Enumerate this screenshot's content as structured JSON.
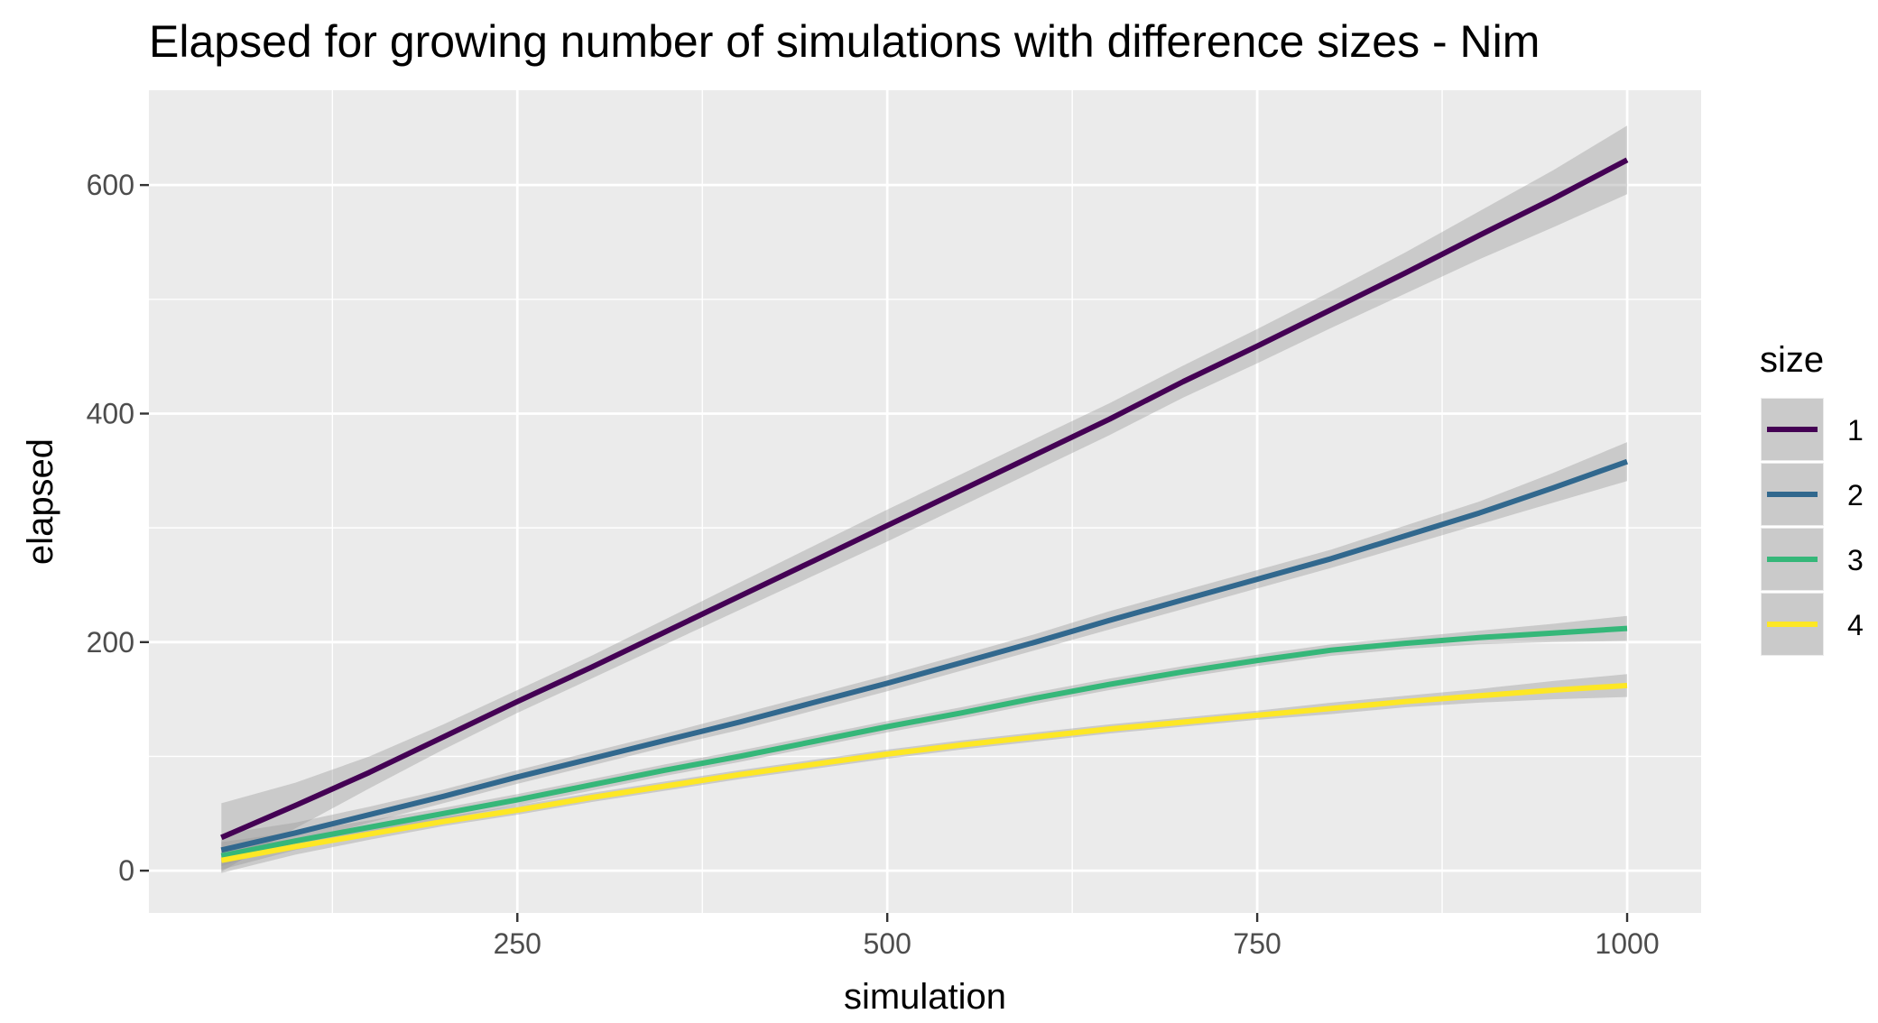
{
  "chart_data": {
    "type": "line",
    "title": "Elapsed for growing number of simulations with difference sizes - Nim",
    "xlabel": "simulation",
    "ylabel": "elapsed",
    "xlim": [
      1,
      1050
    ],
    "ylim": [
      -37,
      683
    ],
    "x_ticks": [
      250,
      500,
      750,
      1000
    ],
    "x_tick_labels": [
      "250",
      "500",
      "750",
      "1000"
    ],
    "y_ticks": [
      0,
      200,
      400,
      600
    ],
    "y_tick_labels": [
      "0",
      "200",
      "400",
      "600"
    ],
    "grid": true,
    "legend": {
      "title": "size",
      "placement": "right"
    },
    "x": [
      50,
      100,
      150,
      200,
      250,
      300,
      350,
      400,
      450,
      500,
      550,
      600,
      650,
      700,
      750,
      800,
      850,
      900,
      950,
      1000
    ],
    "series": [
      {
        "name": "1",
        "color": "#440154",
        "values": [
          29,
          57,
          86,
          117,
          148,
          178,
          209,
          240,
          271,
          302,
          333,
          364,
          395,
          428,
          459,
          491,
          523,
          556,
          588,
          622
        ],
        "ci_halfwidth": [
          30,
          20,
          14,
          11,
          10,
          10,
          11,
          12,
          13,
          14,
          14,
          14,
          14,
          14,
          15,
          16,
          18,
          21,
          25,
          30
        ]
      },
      {
        "name": "2",
        "color": "#31688E",
        "values": [
          18,
          33,
          49,
          65,
          82,
          98,
          114,
          130,
          147,
          164,
          182,
          200,
          219,
          237,
          255,
          273,
          293,
          313,
          335,
          358
        ],
        "ci_halfwidth": [
          14,
          9,
          7,
          6,
          6,
          6,
          6,
          7,
          7,
          7,
          7,
          7,
          8,
          8,
          8,
          8,
          9,
          10,
          13,
          17
        ]
      },
      {
        "name": "3",
        "color": "#35B779",
        "values": [
          13,
          26,
          38,
          50,
          62,
          75,
          88,
          100,
          113,
          126,
          138,
          151,
          163,
          174,
          184,
          193,
          199,
          204,
          208,
          212
        ],
        "ci_halfwidth": [
          12,
          8,
          6,
          5,
          5,
          5,
          5,
          5,
          5,
          5,
          5,
          5,
          5,
          5,
          5,
          5,
          5,
          6,
          8,
          11
        ]
      },
      {
        "name": "4",
        "color": "#FDE725",
        "values": [
          9,
          21,
          32,
          43,
          53,
          64,
          74,
          84,
          93,
          102,
          110,
          117,
          124,
          130,
          136,
          142,
          148,
          153,
          158,
          162
        ],
        "ci_halfwidth": [
          11,
          7,
          5,
          4,
          4,
          4,
          4,
          4,
          4,
          4,
          4,
          4,
          4,
          4,
          4,
          5,
          5,
          6,
          8,
          10
        ]
      }
    ]
  }
}
